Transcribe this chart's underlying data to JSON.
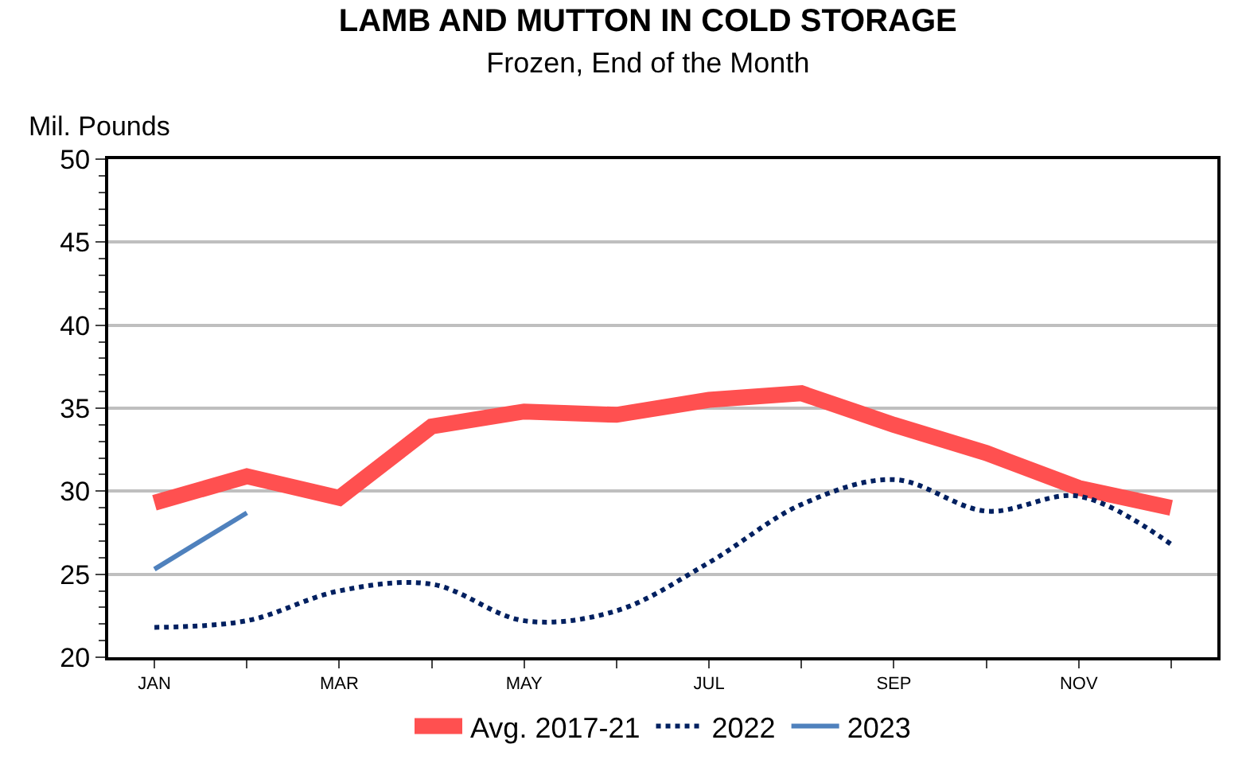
{
  "chart_data": {
    "type": "line",
    "title": "LAMB AND MUTTON IN COLD STORAGE",
    "subtitle": "Frozen, End of the Month",
    "ylabel": "Mil. Pounds",
    "categories": [
      "JAN",
      null,
      "MAR",
      null,
      "MAY",
      null,
      "JUL",
      null,
      "SEP",
      null,
      "NOV",
      null
    ],
    "series": [
      {
        "name": "Avg. 2017-21",
        "color": "#ff5050",
        "line_style": "solid",
        "values": [
          29.3,
          30.9,
          29.6,
          33.9,
          34.8,
          34.6,
          35.5,
          35.9,
          34.0,
          32.3,
          30.2,
          29.0
        ]
      },
      {
        "name": "2022",
        "color": "#002060",
        "line_style": "dotted",
        "values": [
          21.8,
          22.2,
          24.0,
          24.4,
          22.2,
          22.8,
          25.7,
          29.2,
          30.7,
          28.8,
          29.7,
          26.8
        ]
      },
      {
        "name": "2023",
        "color": "#4f81bd",
        "line_style": "solid",
        "values": [
          25.3,
          28.7,
          null,
          null,
          null,
          null,
          null,
          null,
          null,
          null,
          null,
          null
        ]
      }
    ],
    "ylim": [
      20,
      50
    ],
    "yticks": [
      20,
      25,
      30,
      35,
      40,
      45,
      50
    ],
    "grid": "y",
    "legend": "bottom",
    "marker": "none"
  }
}
